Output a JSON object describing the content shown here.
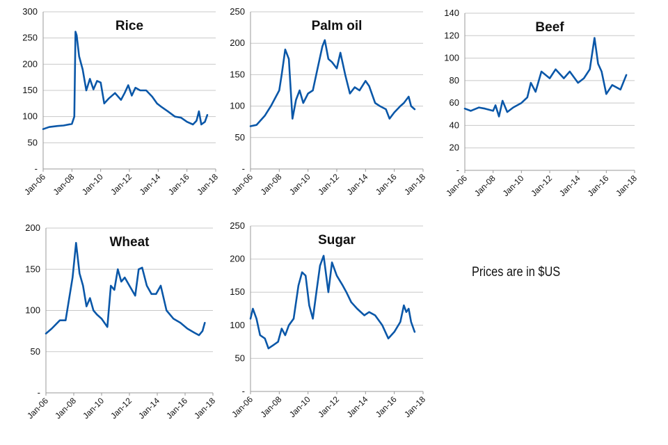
{
  "note": "Prices are in $US",
  "colors": {
    "line": "#0a57a8",
    "axis": "#999999",
    "grid": "#c8c8c8",
    "text": "#111111"
  },
  "chart_data": [
    {
      "type": "line",
      "title": "Rice",
      "xlabel": "",
      "ylabel": "",
      "x_ticks": [
        "Jan-06",
        "Jan-08",
        "Jan-10",
        "Jan-12",
        "Jan-14",
        "Jan-16",
        "Jan-18"
      ],
      "y_ticks": [
        "-",
        "50",
        "100",
        "150",
        "200",
        "250",
        "300"
      ],
      "ylim": [
        0,
        300
      ],
      "xlim": [
        "2006-01",
        "2018-01"
      ],
      "grid": true,
      "series": [
        {
          "x": [
            "2006-01",
            "2006-06",
            "2007-01",
            "2007-06",
            "2008-01",
            "2008-03",
            "2008-04",
            "2008-05",
            "2008-07",
            "2008-10",
            "2009-01",
            "2009-04",
            "2009-07",
            "2009-10",
            "2010-01",
            "2010-04",
            "2010-08",
            "2011-01",
            "2011-06",
            "2011-09",
            "2011-12",
            "2012-03",
            "2012-06",
            "2012-10",
            "2013-03",
            "2013-08",
            "2013-12",
            "2014-04",
            "2014-09",
            "2015-03",
            "2015-08",
            "2016-01",
            "2016-06",
            "2016-09",
            "2016-11",
            "2017-01",
            "2017-04",
            "2017-06"
          ],
          "y": [
            76,
            80,
            82,
            83,
            86,
            100,
            262,
            255,
            215,
            190,
            150,
            172,
            152,
            168,
            165,
            125,
            135,
            145,
            132,
            145,
            160,
            140,
            155,
            150,
            150,
            138,
            125,
            118,
            110,
            100,
            98,
            90,
            85,
            92,
            110,
            85,
            90,
            103
          ]
        }
      ]
    },
    {
      "type": "line",
      "title": "Palm oil",
      "xlabel": "",
      "ylabel": "",
      "x_ticks": [
        "Jan-06",
        "Jan-08",
        "Jan-10",
        "Jan-12",
        "Jan-14",
        "Jan-16",
        "Jan-18"
      ],
      "y_ticks": [
        "-",
        "50",
        "100",
        "150",
        "200",
        "250"
      ],
      "ylim": [
        0,
        250
      ],
      "xlim": [
        "2006-01",
        "2018-01"
      ],
      "grid": true,
      "series": [
        {
          "x": [
            "2006-01",
            "2006-06",
            "2007-01",
            "2007-06",
            "2008-01",
            "2008-03",
            "2008-06",
            "2008-09",
            "2008-12",
            "2009-03",
            "2009-06",
            "2009-09",
            "2010-01",
            "2010-05",
            "2010-09",
            "2011-01",
            "2011-03",
            "2011-06",
            "2011-09",
            "2012-01",
            "2012-04",
            "2012-08",
            "2012-12",
            "2013-04",
            "2013-08",
            "2014-01",
            "2014-04",
            "2014-09",
            "2015-01",
            "2015-06",
            "2015-09",
            "2016-01",
            "2016-06",
            "2016-09",
            "2017-01",
            "2017-03",
            "2017-06"
          ],
          "y": [
            68,
            70,
            85,
            100,
            125,
            150,
            190,
            175,
            80,
            110,
            125,
            105,
            120,
            125,
            160,
            195,
            205,
            175,
            170,
            160,
            185,
            150,
            120,
            130,
            125,
            140,
            132,
            105,
            100,
            95,
            80,
            90,
            100,
            105,
            115,
            100,
            95
          ]
        }
      ]
    },
    {
      "type": "line",
      "title": "Beef",
      "xlabel": "",
      "ylabel": "",
      "x_ticks": [
        "Jan-06",
        "Jan-08",
        "Jan-10",
        "Jan-12",
        "Jan-14",
        "Jan-16",
        "Jan-18"
      ],
      "y_ticks": [
        "-",
        "20",
        "40",
        "60",
        "80",
        "100",
        "120",
        "140"
      ],
      "ylim": [
        0,
        140
      ],
      "xlim": [
        "2006-01",
        "2018-01"
      ],
      "grid": true,
      "series": [
        {
          "x": [
            "2006-01",
            "2006-06",
            "2007-01",
            "2007-06",
            "2008-01",
            "2008-03",
            "2008-06",
            "2008-09",
            "2009-01",
            "2009-06",
            "2010-01",
            "2010-06",
            "2010-09",
            "2011-01",
            "2011-06",
            "2012-01",
            "2012-06",
            "2013-01",
            "2013-06",
            "2014-01",
            "2014-06",
            "2014-11",
            "2015-03",
            "2015-06",
            "2015-09",
            "2016-01",
            "2016-06",
            "2017-01",
            "2017-06"
          ],
          "y": [
            55,
            53,
            56,
            55,
            53,
            58,
            48,
            62,
            52,
            56,
            60,
            65,
            78,
            70,
            88,
            82,
            90,
            82,
            88,
            78,
            82,
            90,
            118,
            95,
            88,
            68,
            76,
            72,
            85
          ]
        }
      ]
    },
    {
      "type": "line",
      "title": "Wheat",
      "xlabel": "",
      "ylabel": "",
      "x_ticks": [
        "Jan-06",
        "Jan-08",
        "Jan-10",
        "Jan-12",
        "Jan-14",
        "Jan-16",
        "Jan-18"
      ],
      "y_ticks": [
        "-",
        "50",
        "100",
        "150",
        "200"
      ],
      "ylim": [
        0,
        200
      ],
      "xlim": [
        "2006-01",
        "2018-01"
      ],
      "grid": true,
      "series": [
        {
          "x": [
            "2006-01",
            "2006-06",
            "2007-01",
            "2007-06",
            "2007-12",
            "2008-03",
            "2008-06",
            "2008-09",
            "2008-12",
            "2009-03",
            "2009-06",
            "2009-09",
            "2010-01",
            "2010-06",
            "2010-09",
            "2010-12",
            "2011-03",
            "2011-06",
            "2011-09",
            "2012-01",
            "2012-06",
            "2012-09",
            "2012-12",
            "2013-04",
            "2013-08",
            "2013-12",
            "2014-04",
            "2014-09",
            "2015-03",
            "2015-09",
            "2016-03",
            "2016-09",
            "2017-01",
            "2017-04",
            "2017-06"
          ],
          "y": [
            72,
            78,
            88,
            88,
            140,
            182,
            145,
            130,
            105,
            115,
            100,
            95,
            90,
            80,
            130,
            125,
            150,
            135,
            140,
            130,
            118,
            150,
            152,
            130,
            120,
            120,
            130,
            100,
            90,
            85,
            78,
            73,
            70,
            75,
            85
          ]
        }
      ]
    },
    {
      "type": "line",
      "title": "Sugar",
      "xlabel": "",
      "ylabel": "",
      "x_ticks": [
        "Jan-06",
        "Jan-08",
        "Jan-10",
        "Jan-12",
        "Jan-14",
        "Jan-16",
        "Jan-18"
      ],
      "y_ticks": [
        "-",
        "50",
        "100",
        "150",
        "200",
        "250"
      ],
      "ylim": [
        0,
        250
      ],
      "xlim": [
        "2006-01",
        "2018-01"
      ],
      "grid": true,
      "series": [
        {
          "x": [
            "2006-01",
            "2006-03",
            "2006-06",
            "2006-09",
            "2007-01",
            "2007-04",
            "2007-08",
            "2007-12",
            "2008-03",
            "2008-06",
            "2008-09",
            "2009-01",
            "2009-05",
            "2009-08",
            "2009-11",
            "2010-02",
            "2010-05",
            "2010-08",
            "2010-11",
            "2011-02",
            "2011-06",
            "2011-09",
            "2012-01",
            "2012-06",
            "2012-09",
            "2013-01",
            "2013-06",
            "2013-12",
            "2014-04",
            "2014-09",
            "2015-03",
            "2015-08",
            "2016-01",
            "2016-06",
            "2016-09",
            "2016-11",
            "2017-01",
            "2017-03",
            "2017-06"
          ],
          "y": [
            110,
            125,
            110,
            85,
            80,
            65,
            70,
            75,
            95,
            85,
            100,
            110,
            160,
            180,
            175,
            130,
            110,
            150,
            190,
            205,
            150,
            195,
            175,
            160,
            150,
            135,
            125,
            115,
            120,
            115,
            100,
            80,
            90,
            105,
            130,
            120,
            125,
            105,
            90
          ]
        }
      ]
    }
  ]
}
